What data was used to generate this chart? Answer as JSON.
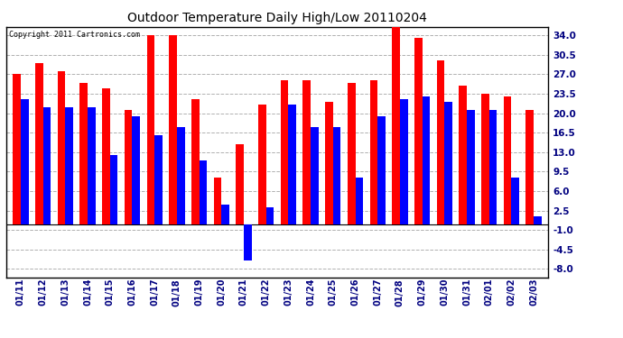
{
  "title": "Outdoor Temperature Daily High/Low 20110204",
  "copyright": "Copyright 2011 Cartronics.com",
  "categories": [
    "01/11",
    "01/12",
    "01/13",
    "01/14",
    "01/15",
    "01/16",
    "01/17",
    "01/18",
    "01/19",
    "01/20",
    "01/21",
    "01/22",
    "01/23",
    "01/24",
    "01/25",
    "01/26",
    "01/27",
    "01/28",
    "01/29",
    "01/30",
    "01/31",
    "02/01",
    "02/02",
    "02/03"
  ],
  "highs": [
    27.0,
    29.0,
    27.5,
    25.5,
    24.5,
    20.5,
    34.0,
    34.0,
    22.5,
    8.5,
    14.5,
    21.5,
    26.0,
    26.0,
    22.0,
    25.5,
    26.0,
    35.5,
    33.5,
    29.5,
    25.0,
    23.5,
    23.0,
    20.5
  ],
  "lows": [
    22.5,
    21.0,
    21.0,
    21.0,
    12.5,
    19.5,
    16.0,
    17.5,
    11.5,
    3.5,
    -6.5,
    3.0,
    21.5,
    17.5,
    17.5,
    8.5,
    19.5,
    22.5,
    23.0,
    22.0,
    20.5,
    20.5,
    8.5,
    1.5
  ],
  "high_color": "#ff0000",
  "low_color": "#0000ff",
  "bg_color": "#ffffff",
  "grid_color": "#b0b0b0",
  "yticks": [
    -8.0,
    -4.5,
    -1.0,
    2.5,
    6.0,
    9.5,
    13.0,
    16.5,
    20.0,
    23.5,
    27.0,
    30.5,
    34.0
  ],
  "ylim": [
    -9.5,
    35.5
  ],
  "bar_width": 0.35
}
